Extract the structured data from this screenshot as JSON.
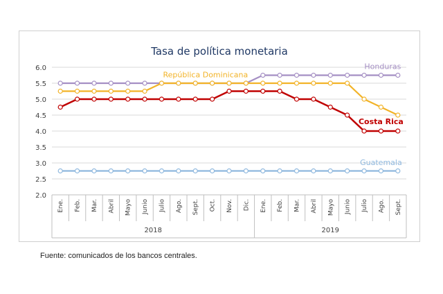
{
  "source_note": "Fuente: comunicados de los bancos centrales.",
  "chart_data": {
    "type": "line",
    "title": "Tasa de política monetaria",
    "categories": [
      "Ene.",
      "Feb.",
      "Mar.",
      "Abril",
      "Mayo",
      "Junio",
      "Julio",
      "Ago.",
      "Sept.",
      "Oct.",
      "Nov.",
      "Dic.",
      "Ene.",
      "Feb.",
      "Mar.",
      "Abril",
      "Mayo",
      "Junio",
      "Julio",
      "Ago.",
      "Sept."
    ],
    "years": [
      {
        "label": "2018",
        "start": 0,
        "end": 11
      },
      {
        "label": "2019",
        "start": 12,
        "end": 20
      }
    ],
    "ylim": [
      2.0,
      6.0
    ],
    "yticks": [
      "2.0",
      "2.5",
      "3.0",
      "3.5",
      "4.0",
      "4.5",
      "5.0",
      "5.5",
      "6.0"
    ],
    "grid": true,
    "legend": "inline labels",
    "series": [
      {
        "name": "Honduras",
        "color": "#a58fc4",
        "values": [
          5.5,
          5.5,
          5.5,
          5.5,
          5.5,
          5.5,
          5.5,
          5.5,
          5.5,
          5.5,
          5.5,
          5.5,
          5.75,
          5.75,
          5.75,
          5.75,
          5.75,
          5.75,
          5.75,
          5.75,
          5.75
        ]
      },
      {
        "name": "República Dominicana",
        "color": "#f2b328",
        "values": [
          5.25,
          5.25,
          5.25,
          5.25,
          5.25,
          5.25,
          5.5,
          5.5,
          5.5,
          5.5,
          5.5,
          5.5,
          5.5,
          5.5,
          5.5,
          5.5,
          5.5,
          5.5,
          5.0,
          4.75,
          4.5
        ]
      },
      {
        "name": "Costa Rica",
        "color": "#c00000",
        "values": [
          4.75,
          5.0,
          5.0,
          5.0,
          5.0,
          5.0,
          5.0,
          5.0,
          5.0,
          5.0,
          5.25,
          5.25,
          5.25,
          5.25,
          5.0,
          5.0,
          4.75,
          4.5,
          4.0,
          4.0,
          4.0
        ]
      },
      {
        "name": "Guatemala",
        "color": "#8fb8de",
        "values": [
          2.75,
          2.75,
          2.75,
          2.75,
          2.75,
          2.75,
          2.75,
          2.75,
          2.75,
          2.75,
          2.75,
          2.75,
          2.75,
          2.75,
          2.75,
          2.75,
          2.75,
          2.75,
          2.75,
          2.75,
          2.75
        ]
      }
    ]
  }
}
